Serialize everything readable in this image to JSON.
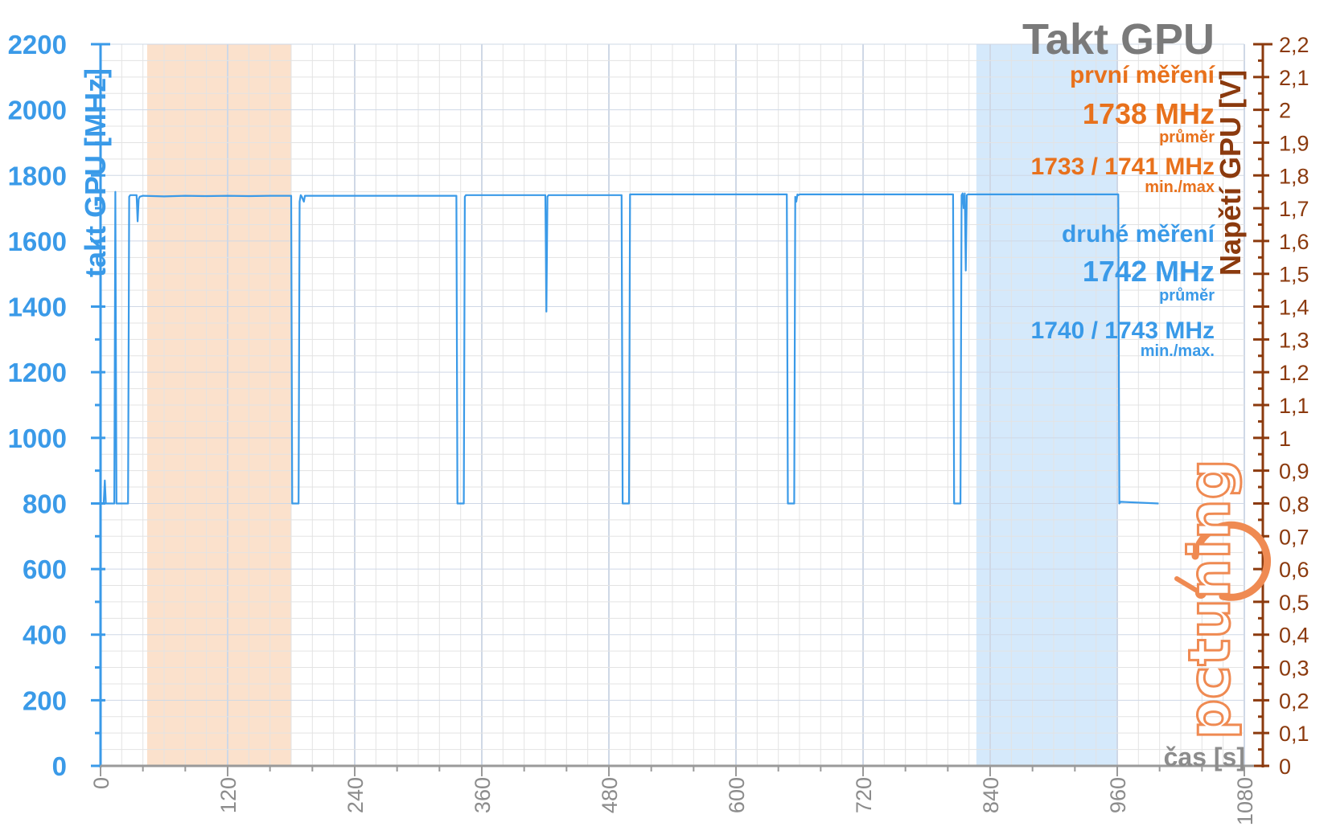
{
  "chart_data": {
    "type": "line",
    "title": "Takt GPU",
    "xlabel": "čas [s]",
    "ylabel": "takt GPU [MHz]",
    "y2label": "Napětí GPU [V]",
    "xlim": [
      0,
      1080
    ],
    "ylim": [
      0,
      2200
    ],
    "y2lim": [
      0,
      2.2
    ],
    "x_ticks": [
      0,
      120,
      240,
      360,
      480,
      600,
      720,
      840,
      960,
      1080
    ],
    "y_ticks": [
      0,
      200,
      400,
      600,
      800,
      1000,
      1200,
      1400,
      1600,
      1800,
      2000,
      2200
    ],
    "y2_ticks": [
      "0",
      "0,1",
      "0,2",
      "0,3",
      "0,4",
      "0,5",
      "0,6",
      "0,7",
      "0,8",
      "0,9",
      "1",
      "1,1",
      "1,2",
      "1,3",
      "1,4",
      "1,5",
      "1,6",
      "1,7",
      "1,8",
      "1,9",
      "2",
      "2,1",
      "2,2"
    ],
    "grid": true,
    "highlight_ranges": [
      {
        "x": [
          44,
          180
        ],
        "color": "#fbe1cc"
      },
      {
        "x": [
          827,
          960
        ],
        "color": "#d5e9fb"
      }
    ],
    "series": [
      {
        "color": "#3a9ae8",
        "x": [
          0,
          3,
          4,
          5,
          6,
          13,
          14,
          15,
          16,
          26,
          27,
          28,
          29,
          34,
          35,
          36,
          37,
          40,
          60,
          80,
          100,
          120,
          140,
          160,
          180,
          181,
          182,
          183,
          187,
          188,
          189,
          190,
          192,
          193,
          194,
          200,
          240,
          280,
          320,
          336,
          337,
          338,
          343,
          344,
          345,
          360,
          400,
          420,
          421,
          422,
          423,
          450,
          492,
          493,
          494,
          499,
          500,
          501,
          520,
          560,
          600,
          640,
          648,
          649,
          650,
          655,
          656,
          657,
          658,
          659,
          660,
          700,
          740,
          780,
          805,
          806,
          807,
          812,
          813,
          814,
          815,
          816,
          817,
          818,
          819,
          820,
          840,
          880,
          920,
          960,
          961,
          962,
          963,
          999
        ],
        "y": [
          800,
          800,
          870,
          800,
          800,
          800,
          1750,
          800,
          800,
          800,
          1735,
          1740,
          1740,
          1740,
          1660,
          1728,
          1735,
          1738,
          1736,
          1738,
          1737,
          1738,
          1737,
          1738,
          1738,
          800,
          800,
          800,
          800,
          1720,
          1740,
          1735,
          1720,
          1738,
          1738,
          1738,
          1738,
          1738,
          1738,
          1738,
          800,
          800,
          800,
          1735,
          1740,
          1740,
          1740,
          1740,
          1385,
          1735,
          1740,
          1740,
          1740,
          800,
          800,
          800,
          1742,
          1742,
          1742,
          1742,
          1742,
          1742,
          1742,
          800,
          800,
          800,
          1735,
          1720,
          1742,
          1740,
          1742,
          1742,
          1742,
          1742,
          1742,
          800,
          800,
          800,
          1740,
          1745,
          1700,
          1745,
          1510,
          1740,
          1742,
          1742,
          1742,
          1742,
          1742,
          1742,
          1742,
          800,
          805,
          800
        ]
      }
    ],
    "annotations": [
      {
        "label": "první měření",
        "value": "1738 MHz",
        "value_label": "průměr",
        "range": "1733 / 1741 MHz",
        "range_label": "min./max",
        "color": "#e8711c"
      },
      {
        "label": "druhé měření",
        "value": "1742 MHz",
        "value_label": "průměr",
        "range": "1740 / 1743 MHz",
        "range_label": "min./max.",
        "color": "#3a9ae8"
      }
    ]
  },
  "logo_text": "pctuning",
  "colors": {
    "clock_axis": "#3a9ae8",
    "voltage_axis": "#8b3a0e",
    "first_measurement": "#e8711c",
    "second_measurement": "#3a9ae8",
    "grid": "#e3e3e3",
    "grid_major": "#cfd8e6",
    "title": "#7a7a7a"
  }
}
